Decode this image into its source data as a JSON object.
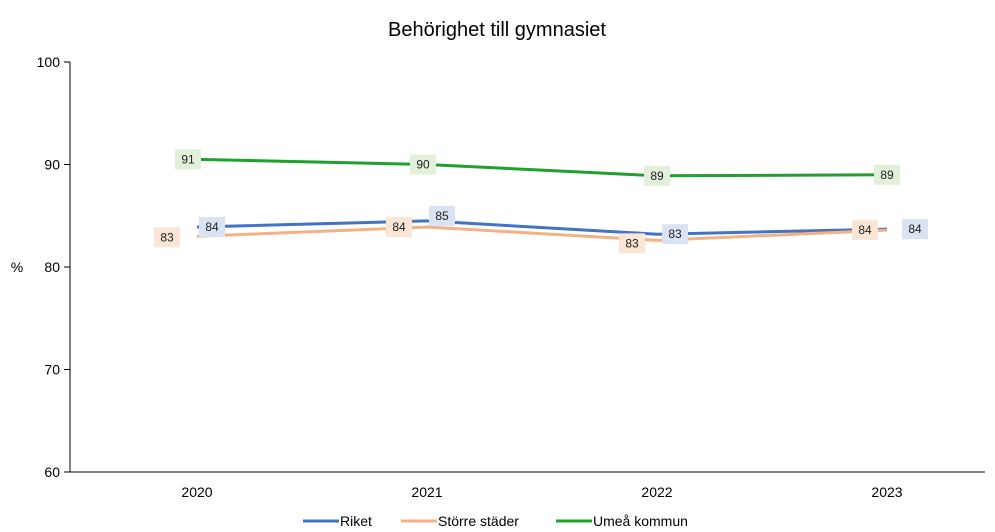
{
  "chart_data": {
    "type": "line",
    "title": "Behörighet till gymnasiet",
    "ylabel": "%",
    "xlabel": "",
    "categories": [
      "2020",
      "2021",
      "2022",
      "2023"
    ],
    "ylim": [
      60,
      100
    ],
    "yticks": [
      "60",
      "70",
      "80",
      "90",
      "100"
    ],
    "grid": false,
    "legend_position": "bottom",
    "series": [
      {
        "name": "Riket",
        "values": [
          83.9,
          84.5,
          83.2,
          83.7
        ],
        "labels": [
          "84",
          "85",
          "83",
          "84"
        ],
        "color": "#4472C4",
        "label_bg": "#DAE3F3"
      },
      {
        "name": "Större städer",
        "values": [
          83.0,
          83.9,
          82.6,
          83.6
        ],
        "labels": [
          "83",
          "84",
          "83",
          "84"
        ],
        "color": "#F4B183",
        "label_bg": "#FBE5D6"
      },
      {
        "name": "Umeå kommun",
        "values": [
          90.5,
          90.0,
          88.9,
          89.0
        ],
        "labels": [
          "91",
          "90",
          "89",
          "89"
        ],
        "color": "#1FA02F",
        "label_bg": "#E2F0D9"
      }
    ]
  }
}
